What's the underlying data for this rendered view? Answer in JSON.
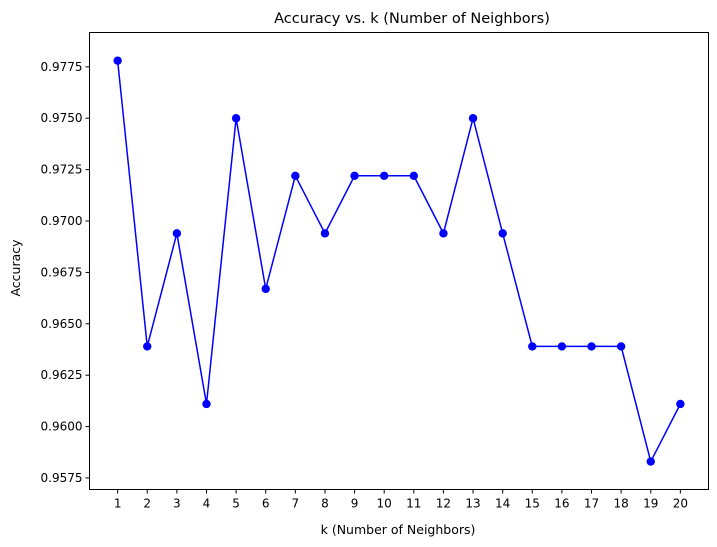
{
  "chart_data": {
    "type": "line",
    "title": "Accuracy vs. k (Number of Neighbors)",
    "xlabel": "k (Number of Neighbors)",
    "ylabel": "Accuracy",
    "x": [
      1,
      2,
      3,
      4,
      5,
      6,
      7,
      8,
      9,
      10,
      11,
      12,
      13,
      14,
      15,
      16,
      17,
      18,
      19,
      20
    ],
    "series": [
      {
        "values": [
          0.9778,
          0.9639,
          0.9694,
          0.9611,
          0.975,
          0.9667,
          0.9722,
          0.9694,
          0.9722,
          0.9722,
          0.9722,
          0.9694,
          0.975,
          0.9694,
          0.9639,
          0.9639,
          0.9639,
          0.9639,
          0.9583,
          0.9611
        ],
        "color": "#0000ff",
        "marker": "circle"
      }
    ],
    "xticks": [
      "1",
      "2",
      "3",
      "4",
      "5",
      "6",
      "7",
      "8",
      "9",
      "10",
      "11",
      "12",
      "13",
      "14",
      "15",
      "16",
      "17",
      "18",
      "19",
      "20"
    ],
    "yticks": [
      "0.9575",
      "0.9600",
      "0.9625",
      "0.9650",
      "0.9675",
      "0.9700",
      "0.9725",
      "0.9750",
      "0.9775"
    ],
    "ytick_values": [
      0.9575,
      0.96,
      0.9625,
      0.965,
      0.9675,
      0.97,
      0.9725,
      0.975,
      0.9775
    ],
    "xlim": [
      0.05,
      20.95
    ],
    "ylim": [
      0.95694,
      0.97917
    ],
    "grid": false,
    "legend": "none"
  }
}
